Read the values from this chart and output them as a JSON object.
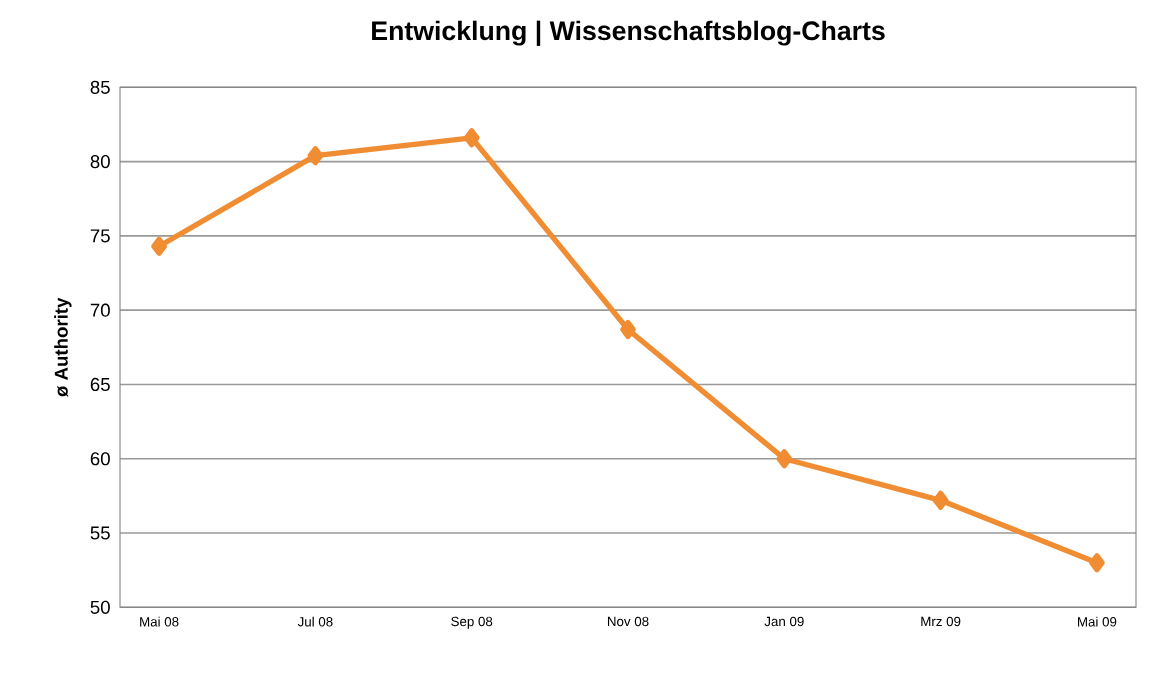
{
  "chart_data": {
    "type": "line",
    "title": "Entwicklung | Wissenschaftsblog-Charts",
    "ylabel": "ø Authority",
    "categories": [
      "Mai 08",
      "Jul 08",
      "Sep 08",
      "Nov 08",
      "Jan 09",
      "Mrz 09",
      "Mai 09"
    ],
    "series": [
      {
        "color": "#f08c32",
        "values": [
          74.3,
          80.4,
          81.6,
          68.7,
          60.0,
          57.2,
          53.0
        ]
      }
    ],
    "ylim": [
      50,
      85
    ],
    "yticks": [
      50,
      55,
      60,
      65,
      70,
      75,
      80,
      85
    ],
    "grid": "y",
    "marker": "diamond",
    "line_style": "solid"
  }
}
